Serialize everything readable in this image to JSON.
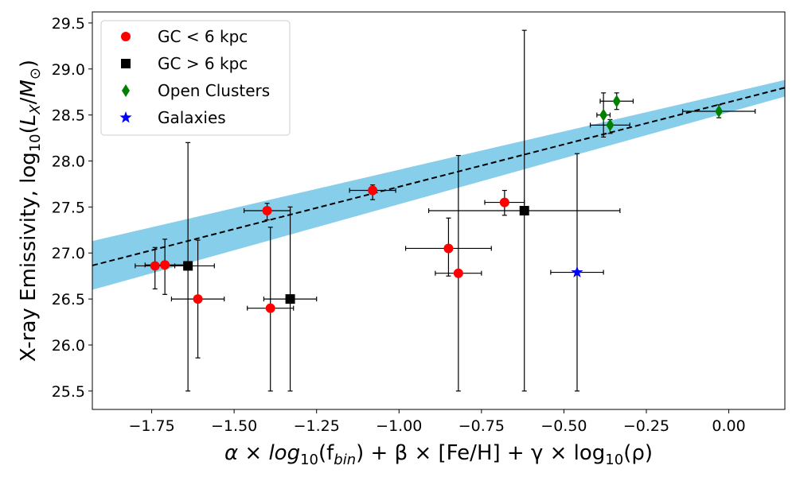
{
  "chart_data": {
    "type": "scatter",
    "title": "",
    "xlabel": "α × log10(f_bin) + β × [Fe/H] + γ × log10(ρ)",
    "ylabel": "X-ray Emissivity, log10(L_X/M⊙)",
    "xlim": [
      -1.93,
      0.17
    ],
    "ylim": [
      25.3,
      29.62
    ],
    "xticks": [
      -1.75,
      -1.5,
      -1.25,
      -1.0,
      -0.75,
      -0.5,
      -0.25,
      0.0
    ],
    "xtick_labels": [
      "−1.75",
      "−1.50",
      "−1.25",
      "−1.00",
      "−0.75",
      "−0.50",
      "−0.25",
      "0.00"
    ],
    "yticks": [
      25.5,
      26.0,
      26.5,
      27.0,
      27.5,
      28.0,
      28.5,
      29.0,
      29.5
    ],
    "ytick_labels": [
      "25.5",
      "26.0",
      "26.5",
      "27.0",
      "27.5",
      "28.0",
      "28.5",
      "29.0",
      "29.5"
    ],
    "legend_position": "top-left",
    "series": [
      {
        "name": "GC < 6 kpc",
        "marker": "circle",
        "color": "#ff0000",
        "points": [
          {
            "x": -1.74,
            "y": 26.86,
            "xerr": [
              0.06,
              0.06
            ],
            "yerr": [
              0.25,
              0.2
            ]
          },
          {
            "x": -1.71,
            "y": 26.87,
            "xerr": [
              0.06,
              0.06
            ],
            "yerr": [
              0.32,
              0.28
            ]
          },
          {
            "x": -1.61,
            "y": 26.5,
            "xerr": [
              0.08,
              0.08
            ],
            "yerr": [
              0.64,
              0.64
            ]
          },
          {
            "x": -1.4,
            "y": 27.46,
            "xerr": [
              0.07,
              0.07
            ],
            "yerr": [
              0.1,
              0.08
            ]
          },
          {
            "x": -1.39,
            "y": 26.4,
            "xerr": [
              0.07,
              0.07
            ],
            "yerr": [
              0.9,
              0.88
            ]
          },
          {
            "x": -1.08,
            "y": 27.68,
            "xerr": [
              0.07,
              0.07
            ],
            "yerr": [
              0.1,
              0.06
            ]
          },
          {
            "x": -0.85,
            "y": 27.05,
            "xerr": [
              0.13,
              0.13
            ],
            "yerr": [
              0.3,
              0.33
            ]
          },
          {
            "x": -0.82,
            "y": 26.78,
            "xerr": [
              0.07,
              0.07
            ],
            "yerr": [
              1.28,
              1.28
            ]
          },
          {
            "x": -0.68,
            "y": 27.55,
            "xerr": [
              0.06,
              0.06
            ],
            "yerr": [
              0.14,
              0.13
            ]
          }
        ]
      },
      {
        "name": "GC > 6 kpc",
        "marker": "square",
        "color": "#000000",
        "points": [
          {
            "x": -1.64,
            "y": 26.86,
            "xerr": [
              0.08,
              0.08
            ],
            "yerr": [
              1.36,
              1.34
            ]
          },
          {
            "x": -1.33,
            "y": 26.5,
            "xerr": [
              0.08,
              0.08
            ],
            "yerr": [
              1.0,
              1.0
            ]
          },
          {
            "x": -0.62,
            "y": 27.46,
            "xerr": [
              0.29,
              0.29
            ],
            "yerr": [
              1.96,
              1.96
            ]
          }
        ]
      },
      {
        "name": "Open Clusters",
        "marker": "diamond",
        "color": "#008000",
        "points": [
          {
            "x": -0.38,
            "y": 28.5,
            "xerr": [
              0.02,
              0.02
            ],
            "yerr": [
              0.24,
              0.24
            ]
          },
          {
            "x": -0.36,
            "y": 28.39,
            "xerr": [
              0.06,
              0.06
            ],
            "yerr": [
              0.09,
              0.06
            ]
          },
          {
            "x": -0.34,
            "y": 28.65,
            "xerr": [
              0.05,
              0.05
            ],
            "yerr": [
              0.09,
              0.09
            ]
          },
          {
            "x": -0.03,
            "y": 28.54,
            "xerr": [
              0.11,
              0.11
            ],
            "yerr": [
              0.07,
              0.07
            ]
          }
        ]
      },
      {
        "name": "Galaxies",
        "marker": "star",
        "color": "#0000ff",
        "points": [
          {
            "x": -0.46,
            "y": 26.79,
            "xerr": [
              0.08,
              0.08
            ],
            "yerr": [
              1.29,
              1.29
            ]
          }
        ]
      }
    ],
    "fit": {
      "slope": 0.92,
      "intercept": 28.64,
      "style": "dashed",
      "color": "#000000"
    },
    "band": {
      "lower_at_xmin": 26.6,
      "upper_at_xmin": 27.13,
      "lower_at_xmax": 28.7,
      "upper_at_xmax": 28.88,
      "color": "#87ceeb"
    }
  }
}
